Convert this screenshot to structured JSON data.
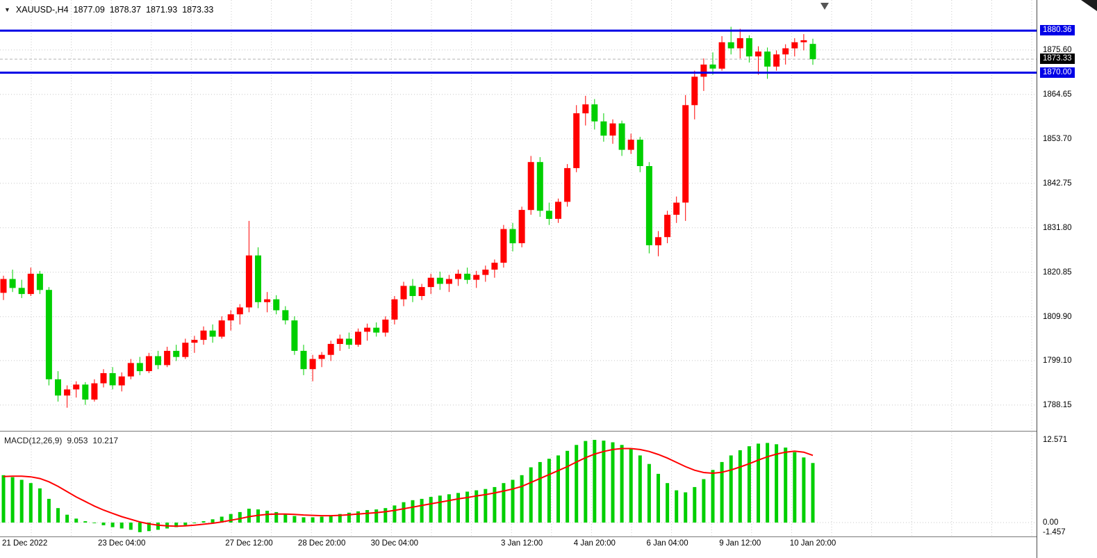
{
  "header": {
    "symbol_period": "XAUUSD-,H4",
    "open": "1877.09",
    "high": "1878.37",
    "low": "1871.93",
    "close": "1873.33"
  },
  "macd_header": {
    "label": "MACD(12,26,9)",
    "main_value": "9.053",
    "signal_value": "10.217"
  },
  "icons": {
    "collapse_arrow": "▼"
  },
  "colors": {
    "bull": "#ff0000",
    "bear": "#00cf00",
    "hist": "#00cf00",
    "signal": "#ff0000",
    "level": "#0000e6",
    "grid": "#c8c8c8"
  },
  "chart_data": {
    "type": "candlestick",
    "symbol": "XAUUSD-",
    "timeframe": "H4",
    "price_axis": {
      "view_top": 1887.9,
      "view_bottom": 1781.8,
      "ticks": [
        {
          "price": 1875.6,
          "label": "1875.60"
        },
        {
          "price": 1864.65,
          "label": "1864.65"
        },
        {
          "price": 1853.7,
          "label": "1853.70"
        },
        {
          "price": 1842.75,
          "label": "1842.75"
        },
        {
          "price": 1831.8,
          "label": "1831.80"
        },
        {
          "price": 1820.85,
          "label": "1820.85"
        },
        {
          "price": 1809.9,
          "label": "1809.90"
        },
        {
          "price": 1799.1,
          "label": "1799.10"
        },
        {
          "price": 1788.15,
          "label": "1788.15"
        }
      ]
    },
    "levels": [
      {
        "price": 1880.36,
        "label": "1880.36"
      },
      {
        "price": 1870.0,
        "label": "1870.00"
      }
    ],
    "current_price": {
      "price": 1873.33,
      "label": "1873.33"
    },
    "x_labels": [
      {
        "index": 0,
        "label": "21 Dec 2022"
      },
      {
        "index": 13,
        "label": "23 Dec 04:00"
      },
      {
        "index": 27,
        "label": "27 Dec 12:00"
      },
      {
        "index": 35,
        "label": "28 Dec 20:00"
      },
      {
        "index": 43,
        "label": "30 Dec 04:00"
      },
      {
        "index": 57,
        "label": "3 Jan 12:00"
      },
      {
        "index": 65,
        "label": "4 Jan 20:00"
      },
      {
        "index": 73,
        "label": "6 Jan 04:00"
      },
      {
        "index": 81,
        "label": "9 Jan 12:00"
      },
      {
        "index": 89,
        "label": "10 Jan 20:00"
      }
    ],
    "candles": [
      [
        1815.8,
        1820.0,
        1814.0,
        1819.2
      ],
      [
        1819.2,
        1821.5,
        1816.0,
        1817.0
      ],
      [
        1817.0,
        1819.0,
        1814.5,
        1815.5
      ],
      [
        1815.5,
        1822.0,
        1815.0,
        1820.5
      ],
      [
        1820.5,
        1821.2,
        1815.5,
        1816.5
      ],
      [
        1816.5,
        1817.2,
        1793.0,
        1794.5
      ],
      [
        1794.5,
        1796.5,
        1789.0,
        1790.5
      ],
      [
        1790.5,
        1793.0,
        1787.5,
        1792.0
      ],
      [
        1792.0,
        1794.0,
        1790.0,
        1793.2
      ],
      [
        1793.2,
        1793.8,
        1788.2,
        1789.5
      ],
      [
        1789.5,
        1794.5,
        1789.0,
        1793.5
      ],
      [
        1793.5,
        1797.0,
        1792.5,
        1796.0
      ],
      [
        1796.0,
        1797.5,
        1792.0,
        1793.0
      ],
      [
        1793.0,
        1796.2,
        1791.5,
        1795.2
      ],
      [
        1795.2,
        1799.5,
        1794.5,
        1798.5
      ],
      [
        1798.5,
        1800.0,
        1795.5,
        1796.5
      ],
      [
        1796.5,
        1801.0,
        1796.0,
        1800.2
      ],
      [
        1800.2,
        1801.5,
        1797.0,
        1798.0
      ],
      [
        1798.0,
        1802.5,
        1797.5,
        1801.5
      ],
      [
        1801.5,
        1803.0,
        1799.0,
        1800.0
      ],
      [
        1800.0,
        1804.5,
        1799.5,
        1803.5
      ],
      [
        1803.5,
        1805.2,
        1801.0,
        1804.2
      ],
      [
        1804.2,
        1807.5,
        1803.0,
        1806.5
      ],
      [
        1806.5,
        1808.0,
        1803.5,
        1805.0
      ],
      [
        1805.0,
        1810.0,
        1804.5,
        1809.0
      ],
      [
        1809.0,
        1811.5,
        1806.5,
        1810.5
      ],
      [
        1810.5,
        1813.0,
        1808.0,
        1812.2
      ],
      [
        1812.2,
        1833.5,
        1811.0,
        1825.0
      ],
      [
        1825.0,
        1827.0,
        1812.0,
        1813.5
      ],
      [
        1813.5,
        1816.0,
        1811.0,
        1814.2
      ],
      [
        1814.2,
        1815.2,
        1810.5,
        1811.5
      ],
      [
        1811.5,
        1812.5,
        1808.0,
        1809.0
      ],
      [
        1809.0,
        1810.0,
        1800.5,
        1801.5
      ],
      [
        1801.5,
        1803.0,
        1795.5,
        1797.0
      ],
      [
        1797.0,
        1800.5,
        1794.0,
        1799.5
      ],
      [
        1799.5,
        1801.2,
        1797.5,
        1800.5
      ],
      [
        1800.5,
        1804.0,
        1799.0,
        1803.2
      ],
      [
        1803.2,
        1805.5,
        1801.5,
        1804.5
      ],
      [
        1804.5,
        1806.0,
        1802.0,
        1803.0
      ],
      [
        1803.0,
        1807.0,
        1802.5,
        1806.2
      ],
      [
        1806.2,
        1808.2,
        1804.0,
        1807.2
      ],
      [
        1807.2,
        1808.5,
        1805.0,
        1806.0
      ],
      [
        1806.0,
        1810.0,
        1805.0,
        1809.2
      ],
      [
        1809.2,
        1815.0,
        1808.0,
        1814.2
      ],
      [
        1814.2,
        1818.5,
        1812.5,
        1817.5
      ],
      [
        1817.5,
        1819.2,
        1813.5,
        1815.0
      ],
      [
        1815.0,
        1818.0,
        1814.0,
        1817.2
      ],
      [
        1817.2,
        1820.5,
        1815.5,
        1819.5
      ],
      [
        1819.5,
        1821.0,
        1816.5,
        1818.0
      ],
      [
        1818.0,
        1820.2,
        1816.0,
        1819.2
      ],
      [
        1819.2,
        1821.5,
        1817.5,
        1820.5
      ],
      [
        1820.5,
        1822.0,
        1818.0,
        1819.0
      ],
      [
        1819.0,
        1821.2,
        1817.0,
        1820.2
      ],
      [
        1820.2,
        1822.5,
        1818.5,
        1821.5
      ],
      [
        1821.5,
        1824.0,
        1819.5,
        1823.2
      ],
      [
        1823.2,
        1832.5,
        1822.0,
        1831.5
      ],
      [
        1831.5,
        1833.0,
        1826.0,
        1828.0
      ],
      [
        1828.0,
        1837.0,
        1827.0,
        1836.2
      ],
      [
        1836.2,
        1849.5,
        1835.0,
        1848.0
      ],
      [
        1848.0,
        1849.2,
        1834.5,
        1836.0
      ],
      [
        1836.0,
        1838.0,
        1832.5,
        1834.0
      ],
      [
        1834.0,
        1839.0,
        1833.0,
        1838.2
      ],
      [
        1838.2,
        1847.5,
        1837.0,
        1846.5
      ],
      [
        1846.5,
        1862.0,
        1845.5,
        1860.0
      ],
      [
        1860.0,
        1864.3,
        1857.0,
        1862.2
      ],
      [
        1862.2,
        1863.5,
        1856.0,
        1858.0
      ],
      [
        1858.0,
        1860.0,
        1853.0,
        1854.5
      ],
      [
        1854.5,
        1858.5,
        1852.5,
        1857.5
      ],
      [
        1857.5,
        1858.2,
        1849.5,
        1851.0
      ],
      [
        1851.0,
        1855.0,
        1850.0,
        1853.5
      ],
      [
        1853.5,
        1854.2,
        1845.5,
        1847.0
      ],
      [
        1847.0,
        1848.0,
        1825.5,
        1827.5
      ],
      [
        1827.5,
        1831.0,
        1824.8,
        1829.5
      ],
      [
        1829.5,
        1836.0,
        1828.0,
        1835.0
      ],
      [
        1835.0,
        1839.5,
        1833.0,
        1838.0
      ],
      [
        1838.0,
        1864.5,
        1833.5,
        1862.0
      ],
      [
        1862.0,
        1870.5,
        1858.5,
        1869.0
      ],
      [
        1869.0,
        1873.5,
        1865.5,
        1872.0
      ],
      [
        1872.0,
        1875.0,
        1869.5,
        1871.0
      ],
      [
        1871.0,
        1879.0,
        1870.5,
        1877.5
      ],
      [
        1877.5,
        1881.3,
        1874.5,
        1876.0
      ],
      [
        1876.0,
        1880.8,
        1873.5,
        1878.5
      ],
      [
        1878.5,
        1879.2,
        1872.5,
        1874.0
      ],
      [
        1874.0,
        1876.5,
        1869.5,
        1875.2
      ],
      [
        1875.2,
        1876.2,
        1868.5,
        1871.5
      ],
      [
        1871.5,
        1875.5,
        1870.5,
        1874.5
      ],
      [
        1874.5,
        1877.0,
        1872.0,
        1876.0
      ],
      [
        1876.0,
        1878.5,
        1874.0,
        1877.5
      ],
      [
        1877.5,
        1879.5,
        1875.5,
        1878.0
      ],
      [
        1877.09,
        1878.37,
        1871.93,
        1873.33
      ]
    ],
    "macd": {
      "label": "MACD(12,26,9)",
      "params": [
        12,
        26,
        9
      ],
      "view_top": 13.73,
      "view_bottom": -2.11,
      "axis_ticks": [
        {
          "value": 12.571,
          "label": "12.571"
        },
        {
          "value": 0,
          "label": "0.00"
        },
        {
          "value": -1.457,
          "label": "-1.457"
        }
      ],
      "histogram": [
        7.2,
        6.9,
        6.5,
        6.0,
        5.2,
        3.6,
        2.2,
        1.2,
        0.6,
        0.2,
        -0.1,
        -0.4,
        -0.7,
        -0.9,
        -1.1,
        -1.457,
        -1.3,
        -1.1,
        -0.9,
        -0.7,
        -0.4,
        -0.1,
        0.2,
        0.5,
        0.9,
        1.3,
        1.6,
        2.1,
        2.0,
        1.8,
        1.6,
        1.3,
        1.0,
        0.8,
        0.8,
        0.9,
        1.1,
        1.3,
        1.5,
        1.7,
        1.9,
        2.0,
        2.2,
        2.6,
        3.1,
        3.4,
        3.6,
        3.9,
        4.1,
        4.3,
        4.5,
        4.7,
        4.9,
        5.1,
        5.4,
        6.0,
        6.5,
        7.2,
        8.4,
        9.2,
        9.7,
        10.2,
        10.9,
        11.8,
        12.4,
        12.571,
        12.45,
        12.2,
        11.8,
        11.2,
        10.2,
        8.9,
        7.4,
        6.0,
        4.9,
        4.6,
        5.4,
        6.6,
        8.0,
        9.2,
        10.2,
        11.0,
        11.6,
        12.0,
        12.1,
        11.9,
        11.4,
        10.7,
        9.9,
        9.053
      ],
      "signal": [
        7.0,
        7.05,
        7.05,
        6.95,
        6.7,
        6.2,
        5.5,
        4.7,
        3.9,
        3.2,
        2.5,
        1.9,
        1.4,
        0.9,
        0.5,
        0.1,
        -0.2,
        -0.4,
        -0.5,
        -0.55,
        -0.5,
        -0.4,
        -0.25,
        -0.1,
        0.1,
        0.35,
        0.6,
        0.9,
        1.1,
        1.25,
        1.3,
        1.3,
        1.25,
        1.15,
        1.1,
        1.05,
        1.05,
        1.1,
        1.2,
        1.3,
        1.4,
        1.5,
        1.65,
        1.85,
        2.1,
        2.35,
        2.6,
        2.85,
        3.1,
        3.35,
        3.6,
        3.8,
        4.05,
        4.25,
        4.5,
        4.8,
        5.1,
        5.5,
        6.1,
        6.7,
        7.3,
        7.9,
        8.5,
        9.2,
        9.85,
        10.4,
        10.8,
        11.1,
        11.25,
        11.25,
        11.1,
        10.8,
        10.35,
        9.8,
        9.15,
        8.5,
        7.95,
        7.6,
        7.5,
        7.65,
        8.0,
        8.45,
        8.95,
        9.5,
        10.0,
        10.4,
        10.7,
        10.85,
        10.7,
        10.217
      ]
    }
  }
}
